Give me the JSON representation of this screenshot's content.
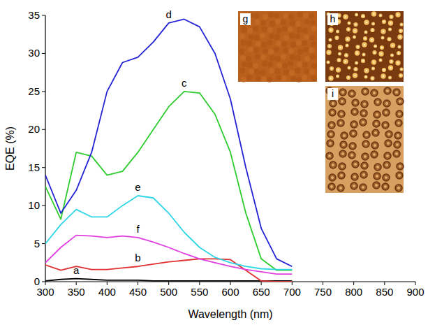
{
  "chart_data": {
    "type": "line",
    "x_label": "Wavelength (nm)",
    "y_label": "EQE (%)",
    "x": [
      300,
      325,
      350,
      375,
      400,
      425,
      450,
      475,
      500,
      525,
      550,
      575,
      600,
      625,
      650,
      675,
      700
    ],
    "xlim": [
      300,
      900
    ],
    "xticks": [
      300,
      350,
      400,
      450,
      500,
      550,
      600,
      650,
      700,
      750,
      800,
      850,
      900
    ],
    "ylim": [
      0,
      35
    ],
    "yticks": [
      0,
      5,
      10,
      15,
      20,
      25,
      30,
      35
    ],
    "grid": false,
    "series": [
      {
        "name": "a",
        "color": "#000000",
        "values": [
          0.1,
          0.3,
          0.4,
          0.3,
          0.2,
          0.2,
          0.2,
          0.1,
          0.1,
          0.1,
          0.1,
          0.1,
          0.1,
          0.1,
          0.1,
          0.1,
          0.1
        ]
      },
      {
        "name": "b",
        "color": "#e03030",
        "values": [
          2.2,
          1.5,
          2.0,
          1.6,
          1.6,
          1.8,
          2.0,
          2.3,
          2.6,
          2.8,
          3.0,
          3.0,
          2.9,
          1.5,
          0.1,
          0,
          0
        ]
      },
      {
        "name": "c",
        "color": "#2ecc2e",
        "values": [
          12.5,
          8.2,
          17.0,
          16.5,
          14.0,
          14.5,
          17.0,
          20.0,
          23.0,
          25.0,
          24.8,
          22.0,
          17.0,
          9.0,
          3.0,
          1.5,
          1.5
        ]
      },
      {
        "name": "d",
        "color": "#2323d6",
        "values": [
          14.0,
          9.0,
          12.0,
          17.0,
          25.0,
          28.8,
          29.5,
          31.5,
          34.0,
          34.5,
          33.5,
          30.0,
          24.0,
          15.0,
          7.0,
          3.0,
          2.0
        ]
      },
      {
        "name": "e",
        "color": "#2fd6e6",
        "values": [
          5.0,
          7.5,
          9.5,
          8.5,
          8.5,
          10.0,
          11.3,
          11.0,
          9.0,
          6.5,
          4.5,
          3.2,
          2.5,
          2.0,
          1.7,
          1.6,
          1.6
        ]
      },
      {
        "name": "f",
        "color": "#e040e0",
        "values": [
          2.5,
          4.5,
          6.1,
          6.0,
          5.8,
          6.0,
          5.8,
          5.2,
          4.5,
          3.7,
          3.0,
          2.5,
          2.0,
          1.6,
          1.3,
          1.0,
          1.0
        ]
      }
    ],
    "insets": [
      "g",
      "h",
      "i"
    ]
  }
}
